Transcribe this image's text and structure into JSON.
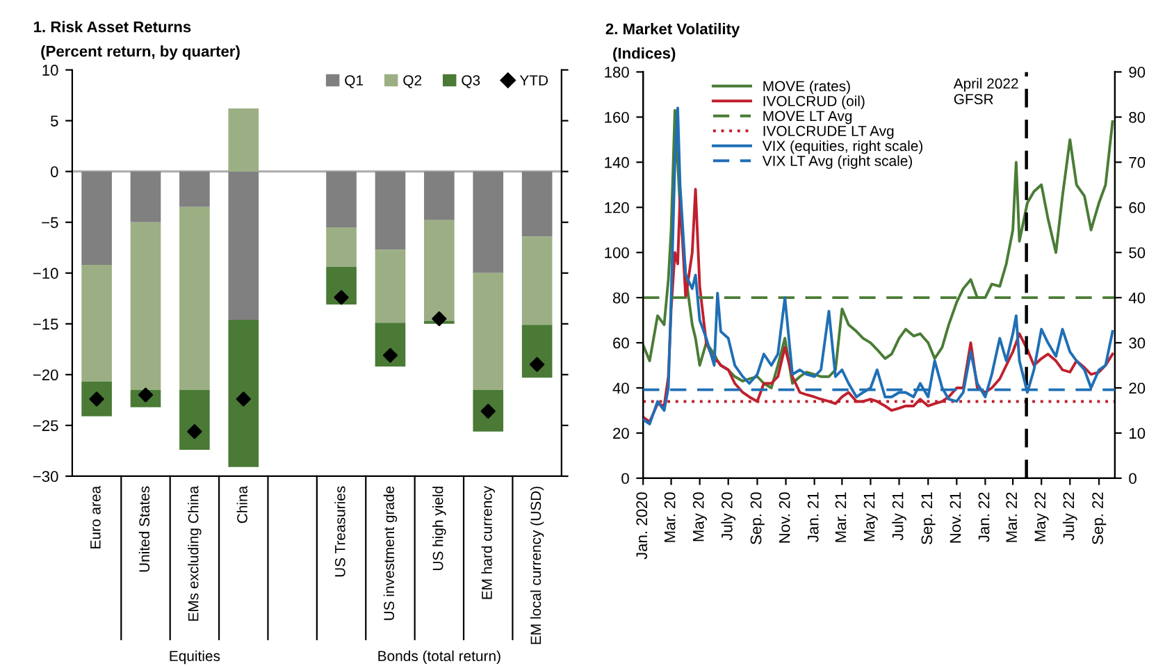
{
  "chart_data": [
    {
      "type": "bar",
      "title": "1. Risk Asset Returns",
      "subtitle": "(Percent return, by quarter)",
      "stacked": true,
      "categories": [
        "Euro area",
        "United States",
        "EMs excluding China",
        "China",
        null,
        "US Treasuries",
        "US investment grade",
        "US high yield",
        "EM hard currency",
        "EM local currency (USD)"
      ],
      "series": [
        {
          "name": "Q1",
          "color": "#808080",
          "values": [
            -9.2,
            -5.0,
            -3.5,
            -14.6,
            null,
            -5.5,
            -7.7,
            -4.8,
            -10.0,
            -6.4
          ]
        },
        {
          "name": "Q2",
          "color": "#9caf84",
          "values": [
            -11.5,
            -16.5,
            -18.0,
            6.2,
            null,
            -3.9,
            -7.2,
            -9.9,
            -11.5,
            -8.7
          ]
        },
        {
          "name": "Q3",
          "color": "#4a7a36",
          "values": [
            -3.4,
            -1.7,
            -5.9,
            -14.5,
            null,
            -3.7,
            -4.3,
            -0.3,
            -4.1,
            -5.2
          ]
        },
        {
          "name": "YTD",
          "type": "scatter",
          "color": "#000000",
          "marker": "diamond",
          "values": [
            -22.4,
            -22.0,
            -25.6,
            -22.4,
            null,
            -12.4,
            -18.1,
            -14.5,
            -23.6,
            -19.0
          ]
        }
      ],
      "ylim": [
        -30,
        10
      ],
      "yticks": [
        -30,
        -25,
        -20,
        -15,
        -10,
        -5,
        0,
        5,
        10
      ],
      "annotations": [
        "Equities",
        "Bonds (total return)"
      ],
      "ref_lines": [
        {
          "axis": "y",
          "value": 0,
          "color": "#b0b0b0"
        }
      ],
      "legend": "top right",
      "grid": false
    },
    {
      "type": "line",
      "title": "2. Market Volatility",
      "subtitle": "(Indices)",
      "x": [
        "2020-01-01",
        "2020-01-15",
        "2020-02-01",
        "2020-02-15",
        "2020-02-24",
        "2020-03-01",
        "2020-03-09",
        "2020-03-15",
        "2020-03-20",
        "2020-04-01",
        "2020-04-15",
        "2020-04-22",
        "2020-05-01",
        "2020-05-15",
        "2020-06-01",
        "2020-06-08",
        "2020-06-15",
        "2020-07-01",
        "2020-07-15",
        "2020-08-01",
        "2020-08-15",
        "2020-09-01",
        "2020-09-15",
        "2020-10-01",
        "2020-10-15",
        "2020-10-30",
        "2020-11-15",
        "2020-12-01",
        "2020-12-15",
        "2021-01-01",
        "2021-01-15",
        "2021-02-01",
        "2021-02-15",
        "2021-03-01",
        "2021-03-15",
        "2021-04-01",
        "2021-04-15",
        "2021-05-01",
        "2021-05-15",
        "2021-06-01",
        "2021-06-15",
        "2021-07-01",
        "2021-07-15",
        "2021-08-01",
        "2021-08-15",
        "2021-09-01",
        "2021-09-15",
        "2021-10-01",
        "2021-10-15",
        "2021-11-01",
        "2021-11-15",
        "2021-12-01",
        "2021-12-15",
        "2022-01-01",
        "2022-01-15",
        "2022-02-01",
        "2022-02-15",
        "2022-03-01",
        "2022-03-08",
        "2022-03-15",
        "2022-04-01",
        "2022-04-15",
        "2022-05-01",
        "2022-05-15",
        "2022-06-01",
        "2022-06-15",
        "2022-07-01",
        "2022-07-15",
        "2022-08-01",
        "2022-08-15",
        "2022-09-01",
        "2022-09-15",
        "2022-09-30"
      ],
      "series": [
        {
          "name": "MOVE (rates)",
          "color": "#4a7c35",
          "values": [
            59,
            52,
            72,
            68,
            88,
            110,
            163,
            140,
            120,
            90,
            68,
            62,
            50,
            60,
            55,
            52,
            50,
            48,
            45,
            43,
            44,
            45,
            42,
            40,
            50,
            62,
            42,
            45,
            47,
            46,
            45,
            45,
            48,
            75,
            68,
            65,
            62,
            60,
            57,
            53,
            55,
            62,
            66,
            63,
            64,
            60,
            53,
            58,
            68,
            78,
            84,
            88,
            80,
            80,
            86,
            85,
            95,
            110,
            140,
            105,
            122,
            127,
            130,
            115,
            100,
            125,
            150,
            130,
            125,
            110,
            122,
            130,
            158
          ]
        },
        {
          "name": "IVOLCRUD (oil)",
          "color": "#c0202e",
          "values": [
            27,
            25,
            33,
            32,
            45,
            75,
            100,
            95,
            125,
            80,
            100,
            128,
            85,
            60,
            52,
            52,
            50,
            48,
            42,
            38,
            36,
            34,
            42,
            42,
            45,
            58,
            45,
            38,
            37,
            36,
            35,
            34,
            33,
            36,
            38,
            34,
            34,
            35,
            34,
            32,
            30,
            31,
            32,
            32,
            35,
            32,
            33,
            34,
            36,
            40,
            40,
            60,
            40,
            38,
            40,
            44,
            50,
            56,
            60,
            64,
            57,
            50,
            53,
            55,
            52,
            48,
            47,
            52,
            49,
            46,
            47,
            50,
            55
          ]
        },
        {
          "name": "MOVE LT Avg",
          "color": "#4a7c35",
          "line_style": "dashed",
          "x": [
            "2020-01-01",
            "2022-10-05"
          ],
          "values": [
            80,
            80
          ]
        },
        {
          "name": "IVOLCRUDE LT Avg",
          "color": "#c0202e",
          "line_style": "dotted",
          "x": [
            "2020-01-01",
            "2022-10-05"
          ],
          "values": [
            34,
            34
          ]
        },
        {
          "name": "VIX (equities, right scale)",
          "color": "#1f6fb5",
          "axis": "y2",
          "values": [
            13,
            12,
            17,
            15,
            20,
            40,
            70,
            82,
            65,
            45,
            42,
            45,
            35,
            31,
            25,
            41,
            32.5,
            31,
            25,
            22.5,
            21,
            23,
            27.5,
            25,
            27.5,
            40,
            23,
            24,
            23,
            22.5,
            24,
            37,
            22.5,
            24,
            21,
            18,
            19,
            20,
            24,
            18,
            18,
            19,
            19,
            18,
            21,
            18,
            26,
            20,
            17.5,
            17,
            19,
            28,
            21,
            18,
            23,
            31,
            26,
            32,
            36,
            26,
            19,
            24,
            33,
            30,
            27,
            33,
            28,
            26,
            24,
            20,
            24,
            25,
            32.5
          ]
        },
        {
          "name": "VIX LT Avg (right scale)",
          "color": "#1f6fb5",
          "axis": "y2",
          "line_style": "dashed",
          "x": [
            "2020-01-01",
            "2022-10-05"
          ],
          "values": [
            19.6,
            19.6
          ]
        }
      ],
      "xlim": [
        "2020-01-01",
        "2022-10-05"
      ],
      "xticks": [
        {
          "value": "2020-01-01",
          "label": "Jan. 2020"
        },
        {
          "value": "2020-03-01",
          "label": "Mar. 20"
        },
        {
          "value": "2020-05-01",
          "label": "May 20"
        },
        {
          "value": "2020-07-01",
          "label": "July 20"
        },
        {
          "value": "2020-09-01",
          "label": "Sep. 20"
        },
        {
          "value": "2020-11-01",
          "label": "Nov. 20"
        },
        {
          "value": "2021-01-01",
          "label": "Jan. 21"
        },
        {
          "value": "2021-03-01",
          "label": "Mar. 21"
        },
        {
          "value": "2021-05-01",
          "label": "May 21"
        },
        {
          "value": "2021-07-01",
          "label": "July 21"
        },
        {
          "value": "2021-09-01",
          "label": "Sep. 21"
        },
        {
          "value": "2021-11-01",
          "label": "Nov. 21"
        },
        {
          "value": "2022-01-01",
          "label": "Jan. 22"
        },
        {
          "value": "2022-03-01",
          "label": "Mar. 22"
        },
        {
          "value": "2022-05-01",
          "label": "May 22"
        },
        {
          "value": "2022-07-01",
          "label": "July 22"
        },
        {
          "value": "2022-09-01",
          "label": "Sep. 22"
        }
      ],
      "ylim": [
        0,
        180
      ],
      "yticks": [
        0,
        20,
        40,
        60,
        80,
        100,
        120,
        140,
        160,
        180
      ],
      "y2lim": [
        0,
        90
      ],
      "y2ticks": [
        0,
        10,
        20,
        30,
        40,
        50,
        60,
        70,
        80,
        90
      ],
      "ref_lines": [
        {
          "axis": "x",
          "value": "2022-03-30",
          "label": "April 2022\nGFSR",
          "color": "#000000",
          "line_style": "dashed"
        }
      ],
      "legend": "top left",
      "grid": false
    }
  ]
}
